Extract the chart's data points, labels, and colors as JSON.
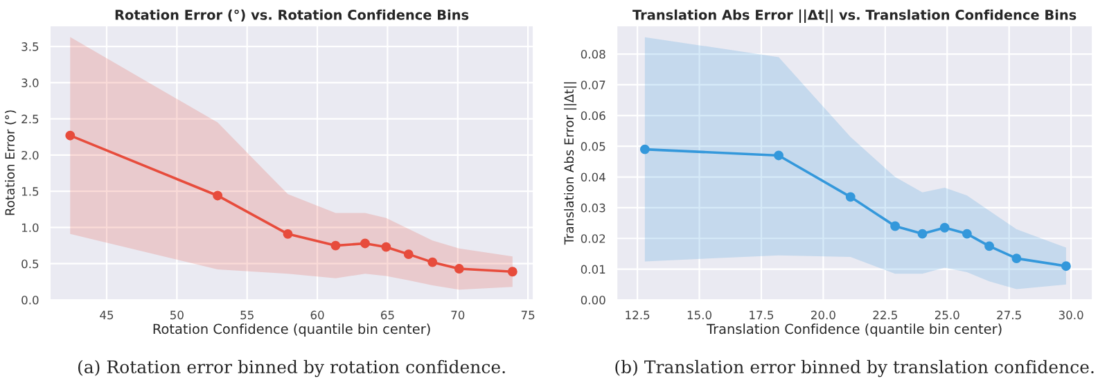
{
  "chart_data": [
    {
      "type": "line",
      "title": "Rotation Error (°) vs. Rotation Confidence Bins",
      "xlabel": "Rotation Confidence (quantile bin center)",
      "ylabel": "Rotation Error (°)",
      "annotations": [
        "(a) Rotation error binned by rotation confidence."
      ],
      "series": [
        {
          "color": "#e74c3c",
          "x": [
            42.4,
            52.9,
            57.9,
            61.3,
            63.4,
            64.9,
            66.5,
            68.2,
            70.1,
            73.9
          ],
          "values": [
            2.27,
            1.44,
            0.91,
            0.75,
            0.78,
            0.73,
            0.63,
            0.52,
            0.43,
            0.39
          ],
          "lower": [
            0.91,
            0.42,
            0.36,
            0.3,
            0.36,
            0.33,
            0.27,
            0.2,
            0.14,
            0.18
          ],
          "upper": [
            3.63,
            2.45,
            1.46,
            1.2,
            1.2,
            1.13,
            0.98,
            0.82,
            0.71,
            0.6
          ]
        }
      ],
      "xlim": [
        40.95,
        75.4
      ],
      "ylim": [
        0,
        3.79
      ],
      "xticks": [
        45,
        50,
        55,
        60,
        65,
        70,
        75
      ],
      "yticks": [
        {
          "value": 0,
          "label": "0.0"
        },
        {
          "value": 0.5,
          "label": "0.5"
        },
        {
          "value": 1,
          "label": "1.0"
        },
        {
          "value": 1.5,
          "label": "1.5"
        },
        {
          "value": 2,
          "label": "2.0"
        },
        {
          "value": 2.5,
          "label": "2.5"
        },
        {
          "value": 3,
          "label": "3.0"
        },
        {
          "value": 3.5,
          "label": "3.5"
        }
      ],
      "grid": true,
      "marker": "circle",
      "line_style": "solid"
    },
    {
      "type": "line",
      "title": "Translation Abs Error ||Δt|| vs. Translation Confidence Bins",
      "xlabel": "Translation Confidence (quantile bin center)",
      "ylabel": "Translation Abs Error ||Δt||",
      "annotations": [
        "(b) Translation error binned by translation confidence."
      ],
      "series": [
        {
          "color": "#3498db",
          "x": [
            12.8,
            18.2,
            21.1,
            22.9,
            24.0,
            24.9,
            25.8,
            26.7,
            27.8,
            29.8
          ],
          "values": [
            0.049,
            0.047,
            0.0335,
            0.024,
            0.0215,
            0.0235,
            0.0215,
            0.0175,
            0.0135,
            0.011
          ],
          "lower": [
            0.0125,
            0.0145,
            0.014,
            0.0085,
            0.0085,
            0.0105,
            0.009,
            0.006,
            0.0035,
            0.005
          ],
          "upper": [
            0.0855,
            0.079,
            0.053,
            0.04,
            0.035,
            0.0365,
            0.034,
            0.029,
            0.023,
            0.017
          ]
        }
      ],
      "xlim": [
        11.66,
        30.87
      ],
      "ylim": [
        0,
        0.0893
      ],
      "xticks": [
        {
          "value": 12.5,
          "label": "12.5"
        },
        {
          "value": 15,
          "label": "15.0"
        },
        {
          "value": 17.5,
          "label": "17.5"
        },
        {
          "value": 20,
          "label": "20.0"
        },
        {
          "value": 22.5,
          "label": "22.5"
        },
        {
          "value": 25,
          "label": "25.0"
        },
        {
          "value": 27.5,
          "label": "27.5"
        },
        {
          "value": 30,
          "label": "30.0"
        }
      ],
      "yticks": [
        {
          "value": 0,
          "label": "0.00"
        },
        {
          "value": 0.01,
          "label": "0.01"
        },
        {
          "value": 0.02,
          "label": "0.02"
        },
        {
          "value": 0.03,
          "label": "0.03"
        },
        {
          "value": 0.04,
          "label": "0.04"
        },
        {
          "value": 0.05,
          "label": "0.05"
        },
        {
          "value": 0.06,
          "label": "0.06"
        },
        {
          "value": 0.07,
          "label": "0.07"
        },
        {
          "value": 0.08,
          "label": "0.08"
        }
      ],
      "grid": true,
      "marker": "circle",
      "line_style": "solid"
    }
  ]
}
